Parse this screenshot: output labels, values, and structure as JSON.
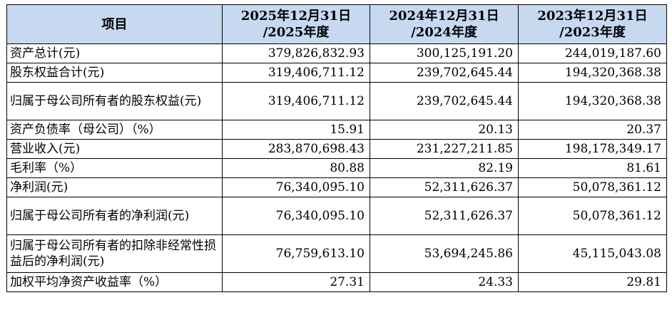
{
  "table": {
    "headers": {
      "item": "项目",
      "col1_line1": "2025年12月31日",
      "col1_line2": "/2025年度",
      "col2_line1": "2024年12月31日",
      "col2_line2": "/2024年度",
      "col3_line1": "2023年12月31日",
      "col3_line2": "/2023年度"
    },
    "rows": [
      {
        "label": "资产总计(元)",
        "v2025": "379,826,832.93",
        "v2024": "300,125,191.20",
        "v2023": "244,019,187.60"
      },
      {
        "label": "股东权益合计(元)",
        "v2025": "319,406,711.12",
        "v2024": "239,702,645.44",
        "v2023": "194,320,368.38"
      },
      {
        "label": "归属于母公司所有者的股东权益(元)",
        "v2025": "319,406,711.12",
        "v2024": "239,702,645.44",
        "v2023": "194,320,368.38"
      },
      {
        "label": "资产负债率（母公司）（%）",
        "v2025": "15.91",
        "v2024": "20.13",
        "v2023": "20.37"
      },
      {
        "label": "营业收入(元)",
        "v2025": "283,870,698.43",
        "v2024": "231,227,211.85",
        "v2023": "198,178,349.17"
      },
      {
        "label": "毛利率（%）",
        "v2025": "80.88",
        "v2024": "82.19",
        "v2023": "81.61"
      },
      {
        "label": "净利润(元)",
        "v2025": "76,340,095.10",
        "v2024": "52,311,626.37",
        "v2023": "50,078,361.12"
      },
      {
        "label": "归属于母公司所有者的净利润(元)",
        "v2025": "76,340,095.10",
        "v2024": "52,311,626.37",
        "v2023": "50,078,361.12"
      },
      {
        "label": "归属于母公司所有者的扣除非经常性损益后的净利润(元)",
        "v2025": "76,759,613.10",
        "v2024": "53,694,245.86",
        "v2023": "45,115,043.08"
      },
      {
        "label": "加权平均净资产收益率（%）",
        "v2025": "27.31",
        "v2024": "24.33",
        "v2023": "29.81"
      }
    ]
  },
  "colors": {
    "header_background": "#c6d9f1",
    "border": "#000000",
    "text": "#000000"
  }
}
